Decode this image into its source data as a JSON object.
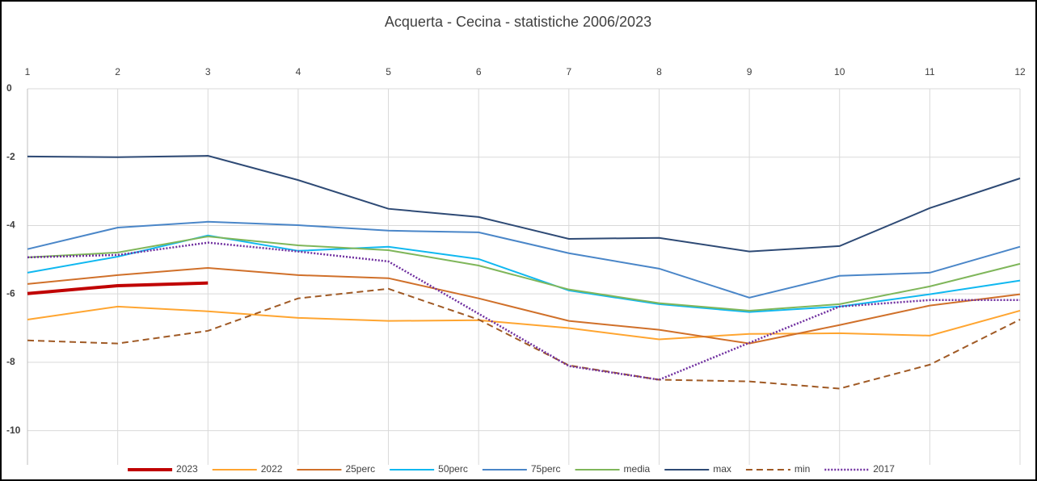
{
  "chart_data": {
    "type": "line",
    "title": "Acquerta - Cecina - statistiche 2006/2023",
    "categories": [
      "1",
      "2",
      "3",
      "4",
      "5",
      "6",
      "7",
      "8",
      "9",
      "10",
      "11",
      "12"
    ],
    "ylim": [
      -11,
      0
    ],
    "yticks": [
      0,
      -2,
      -4,
      -6,
      -8,
      -10
    ],
    "grid": true,
    "legend": "bottom",
    "series": [
      {
        "name": "2023",
        "color": "#c00000",
        "width": 4,
        "style": "solid",
        "values": [
          -5.99,
          -5.76,
          -5.68,
          null,
          null,
          null,
          null,
          null,
          null,
          null,
          null,
          null
        ]
      },
      {
        "name": "2022",
        "color": "#ffa530",
        "width": 2,
        "style": "solid",
        "values": [
          -6.75,
          -6.37,
          -6.51,
          -6.7,
          -6.79,
          -6.77,
          -7.0,
          -7.33,
          -7.17,
          -7.15,
          -7.22,
          -6.49
        ]
      },
      {
        "name": "25perc",
        "color": "#d0702a",
        "width": 2,
        "style": "solid",
        "values": [
          -5.71,
          -5.45,
          -5.24,
          -5.45,
          -5.54,
          -6.13,
          -6.79,
          -7.05,
          -7.45,
          -6.91,
          -6.34,
          -6.01
        ]
      },
      {
        "name": "50perc",
        "color": "#10b8f0",
        "width": 2,
        "style": "solid",
        "values": [
          -5.38,
          -4.91,
          -4.29,
          -4.74,
          -4.62,
          -4.98,
          -5.9,
          -6.3,
          -6.53,
          -6.37,
          -6.01,
          -5.61
        ]
      },
      {
        "name": "75perc",
        "color": "#4a86c8",
        "width": 2,
        "style": "solid",
        "values": [
          -4.69,
          -4.06,
          -3.89,
          -3.99,
          -4.15,
          -4.2,
          -4.81,
          -5.26,
          -6.11,
          -5.47,
          -5.38,
          -4.62
        ]
      },
      {
        "name": "media",
        "color": "#7fb65a",
        "width": 2,
        "style": "solid",
        "values": [
          -4.93,
          -4.79,
          -4.32,
          -4.58,
          -4.72,
          -5.17,
          -5.87,
          -6.27,
          -6.49,
          -6.3,
          -5.78,
          -5.12
        ]
      },
      {
        "name": "max",
        "color": "#2e4a75",
        "width": 2,
        "style": "solid",
        "values": [
          -1.98,
          -2.0,
          -1.96,
          -2.67,
          -3.51,
          -3.75,
          -4.39,
          -4.36,
          -4.76,
          -4.6,
          -3.49,
          -2.62
        ]
      },
      {
        "name": "min",
        "color": "#a05a25",
        "width": 2,
        "style": "dashed",
        "values": [
          -7.36,
          -7.45,
          -7.08,
          -6.13,
          -5.85,
          -6.75,
          -8.09,
          -8.51,
          -8.56,
          -8.77,
          -8.07,
          -6.75
        ]
      },
      {
        "name": "2017",
        "color": "#7030a0",
        "width": 2.5,
        "style": "dotted",
        "values": [
          -4.93,
          -4.86,
          -4.5,
          -4.76,
          -5.05,
          -6.58,
          -8.11,
          -8.51,
          -7.43,
          -6.37,
          -6.18,
          -6.18
        ]
      }
    ]
  }
}
